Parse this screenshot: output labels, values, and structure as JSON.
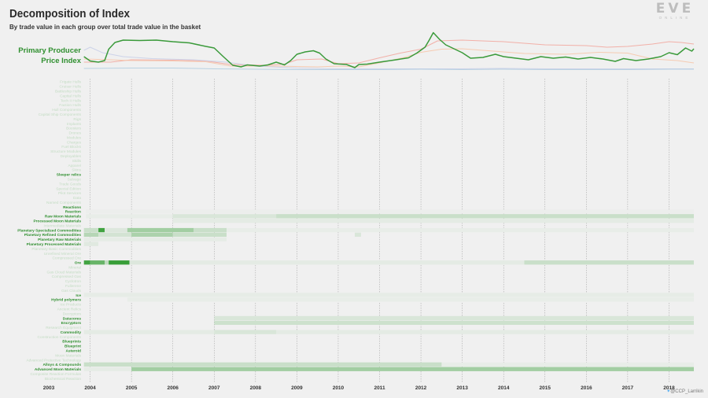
{
  "header": {
    "title": "Decomposition of Index",
    "subtitle": "By trade value in each group over total trade value in the basket"
  },
  "logo": {
    "text": "EVE",
    "tagline": "ONLINE"
  },
  "credit": {
    "handle": "@CCP_Larrikin"
  },
  "colors": {
    "background": "#f0f0f0",
    "index_line": "#3a9a3a",
    "label_highlight": "#2f8f2f",
    "label_faint": "#c3dcc3",
    "series_salmon": "#f2a9a0",
    "series_peach": "#f6c7ab",
    "series_lavender": "#c9cfe8",
    "series_blue": "#b3cde0",
    "heat_low": "#f0f0f0",
    "heat_high": "#2e9a2e"
  },
  "chart_data": {
    "type": "heatmap",
    "title": "Decomposition of Index",
    "subtitle": "By trade value in each group over total trade value in the basket",
    "index_label_lines": [
      "Primary Producer",
      "Price Index"
    ],
    "x_ticks": [
      "2003",
      "2004",
      "2005",
      "2006",
      "2007",
      "2008",
      "2009",
      "2010",
      "2011",
      "2012",
      "2013",
      "2014",
      "2015",
      "2016",
      "2017",
      "2018"
    ],
    "x_range": [
      2003.0,
      2018.6
    ],
    "line_series": [
      {
        "role": "index",
        "color": "#3a9a3a",
        "points": [
          [
            2003.85,
            0.36
          ],
          [
            2004.0,
            0.25
          ],
          [
            2004.2,
            0.22
          ],
          [
            2004.35,
            0.26
          ],
          [
            2004.45,
            0.55
          ],
          [
            2004.6,
            0.72
          ],
          [
            2004.8,
            0.78
          ],
          [
            2005.2,
            0.77
          ],
          [
            2005.6,
            0.78
          ],
          [
            2006.0,
            0.74
          ],
          [
            2006.4,
            0.71
          ],
          [
            2006.8,
            0.62
          ],
          [
            2007.0,
            0.58
          ],
          [
            2007.2,
            0.38
          ],
          [
            2007.45,
            0.14
          ],
          [
            2007.65,
            0.1
          ],
          [
            2007.8,
            0.15
          ],
          [
            2008.1,
            0.12
          ],
          [
            2008.3,
            0.15
          ],
          [
            2008.5,
            0.22
          ],
          [
            2008.7,
            0.15
          ],
          [
            2008.85,
            0.26
          ],
          [
            2009.0,
            0.42
          ],
          [
            2009.2,
            0.48
          ],
          [
            2009.4,
            0.51
          ],
          [
            2009.55,
            0.45
          ],
          [
            2009.7,
            0.3
          ],
          [
            2009.9,
            0.18
          ],
          [
            2010.2,
            0.16
          ],
          [
            2010.4,
            0.08
          ],
          [
            2010.5,
            0.16
          ],
          [
            2010.7,
            0.17
          ],
          [
            2011.0,
            0.22
          ],
          [
            2011.4,
            0.28
          ],
          [
            2011.7,
            0.33
          ],
          [
            2011.9,
            0.45
          ],
          [
            2012.1,
            0.6
          ],
          [
            2012.2,
            0.78
          ],
          [
            2012.3,
            0.97
          ],
          [
            2012.45,
            0.8
          ],
          [
            2012.6,
            0.66
          ],
          [
            2012.8,
            0.56
          ],
          [
            2013.0,
            0.46
          ],
          [
            2013.2,
            0.32
          ],
          [
            2013.5,
            0.34
          ],
          [
            2013.8,
            0.42
          ],
          [
            2014.0,
            0.36
          ],
          [
            2014.3,
            0.32
          ],
          [
            2014.6,
            0.28
          ],
          [
            2014.9,
            0.36
          ],
          [
            2015.2,
            0.32
          ],
          [
            2015.5,
            0.35
          ],
          [
            2015.8,
            0.3
          ],
          [
            2016.1,
            0.34
          ],
          [
            2016.4,
            0.3
          ],
          [
            2016.7,
            0.24
          ],
          [
            2016.9,
            0.31
          ],
          [
            2017.2,
            0.26
          ],
          [
            2017.5,
            0.3
          ],
          [
            2017.8,
            0.36
          ],
          [
            2018.0,
            0.46
          ],
          [
            2018.2,
            0.41
          ],
          [
            2018.4,
            0.58
          ],
          [
            2018.55,
            0.5
          ],
          [
            2018.6,
            0.56
          ]
        ]
      },
      {
        "role": "component",
        "color": "#f2a9a0",
        "points": [
          [
            2003.85,
            0.22
          ],
          [
            2004.5,
            0.22
          ],
          [
            2005.0,
            0.28
          ],
          [
            2006.0,
            0.27
          ],
          [
            2006.8,
            0.25
          ],
          [
            2007.4,
            0.16
          ],
          [
            2008.2,
            0.14
          ],
          [
            2008.7,
            0.17
          ],
          [
            2009.0,
            0.28
          ],
          [
            2009.6,
            0.3
          ],
          [
            2010.0,
            0.18
          ],
          [
            2010.5,
            0.2
          ],
          [
            2011.0,
            0.33
          ],
          [
            2011.5,
            0.45
          ],
          [
            2012.0,
            0.55
          ],
          [
            2012.4,
            0.76
          ],
          [
            2013.0,
            0.78
          ],
          [
            2014.0,
            0.74
          ],
          [
            2015.0,
            0.66
          ],
          [
            2016.0,
            0.64
          ],
          [
            2016.5,
            0.6
          ],
          [
            2017.0,
            0.62
          ],
          [
            2017.6,
            0.68
          ],
          [
            2018.0,
            0.74
          ],
          [
            2018.3,
            0.72
          ],
          [
            2018.6,
            0.68
          ]
        ]
      },
      {
        "role": "component",
        "color": "#f6c7ab",
        "points": [
          [
            2003.85,
            0.3
          ],
          [
            2004.5,
            0.28
          ],
          [
            2005.0,
            0.26
          ],
          [
            2006.0,
            0.25
          ],
          [
            2006.8,
            0.23
          ],
          [
            2007.4,
            0.12
          ],
          [
            2008.5,
            0.12
          ],
          [
            2009.5,
            0.1
          ],
          [
            2010.0,
            0.12
          ],
          [
            2010.5,
            0.1
          ],
          [
            2011.0,
            0.2
          ],
          [
            2011.6,
            0.34
          ],
          [
            2012.0,
            0.47
          ],
          [
            2012.5,
            0.55
          ],
          [
            2013.0,
            0.56
          ],
          [
            2013.5,
            0.52
          ],
          [
            2014.5,
            0.44
          ],
          [
            2015.5,
            0.42
          ],
          [
            2016.3,
            0.47
          ],
          [
            2017.0,
            0.45
          ],
          [
            2017.6,
            0.3
          ],
          [
            2018.2,
            0.26
          ],
          [
            2018.6,
            0.2
          ]
        ]
      },
      {
        "role": "component",
        "color": "#c9cfe8",
        "points": [
          [
            2003.85,
            0.52
          ],
          [
            2004.0,
            0.6
          ],
          [
            2004.3,
            0.46
          ],
          [
            2004.8,
            0.36
          ],
          [
            2005.5,
            0.31
          ],
          [
            2006.5,
            0.28
          ],
          [
            2007.3,
            0.22
          ],
          [
            2008.0,
            0.12
          ],
          [
            2009.0,
            0.07
          ],
          [
            2010.0,
            0.05
          ],
          [
            2011.0,
            0.05
          ],
          [
            2012.0,
            0.05
          ],
          [
            2013.0,
            0.05
          ],
          [
            2014.0,
            0.06
          ],
          [
            2015.0,
            0.05
          ],
          [
            2016.0,
            0.05
          ],
          [
            2017.0,
            0.05
          ],
          [
            2018.0,
            0.05
          ],
          [
            2018.6,
            0.05
          ]
        ]
      },
      {
        "role": "component",
        "color": "#b3cde0",
        "points": [
          [
            2003.85,
            0.06
          ],
          [
            2005.0,
            0.07
          ],
          [
            2006.0,
            0.07
          ],
          [
            2007.0,
            0.05
          ],
          [
            2008.0,
            0.04
          ],
          [
            2009.0,
            0.03
          ],
          [
            2010.0,
            0.03
          ],
          [
            2011.0,
            0.03
          ],
          [
            2012.0,
            0.04
          ],
          [
            2013.0,
            0.03
          ],
          [
            2014.0,
            0.04
          ],
          [
            2015.0,
            0.03
          ],
          [
            2016.0,
            0.03
          ],
          [
            2017.0,
            0.03
          ],
          [
            2018.0,
            0.04
          ],
          [
            2018.6,
            0.04
          ]
        ]
      }
    ],
    "rows": [
      {
        "label": "Frigate Hulls",
        "weight": 0,
        "bands": []
      },
      {
        "label": "Cruiser Hulls",
        "weight": 0,
        "bands": []
      },
      {
        "label": "Battleship Hulls",
        "weight": 0,
        "bands": []
      },
      {
        "label": "Capital Hulls",
        "weight": 0,
        "bands": []
      },
      {
        "label": "Tech II Hulls",
        "weight": 0,
        "bands": []
      },
      {
        "label": "Faction Hulls",
        "weight": 0,
        "bands": []
      },
      {
        "label": "Hull Components",
        "weight": 0,
        "bands": []
      },
      {
        "label": "Capital Ship Components",
        "weight": 0,
        "bands": []
      },
      {
        "label": "Rigs",
        "weight": 0,
        "bands": []
      },
      {
        "label": "Implants",
        "weight": 0,
        "bands": []
      },
      {
        "label": "Boosters",
        "weight": 0,
        "bands": []
      },
      {
        "label": "Drones",
        "weight": 0,
        "bands": []
      },
      {
        "label": "Modules",
        "weight": 0,
        "bands": []
      },
      {
        "label": "Charges",
        "weight": 0,
        "bands": []
      },
      {
        "label": "Fuel Blocks",
        "weight": 0,
        "bands": []
      },
      {
        "label": "Structure Modules",
        "weight": 0,
        "bands": []
      },
      {
        "label": "Deployables",
        "weight": 0,
        "bands": []
      },
      {
        "label": "Skills",
        "weight": 0,
        "bands": []
      },
      {
        "label": "Apparel",
        "weight": 0,
        "bands": []
      },
      {
        "label": "Skins",
        "weight": 0,
        "bands": []
      },
      {
        "label": "Sleeper relics",
        "weight": 1,
        "bands": []
      },
      {
        "label": "Salvage",
        "weight": 0,
        "bands": []
      },
      {
        "label": "Trade Goods",
        "weight": 0,
        "bands": []
      },
      {
        "label": "Special Edition",
        "weight": 0,
        "bands": []
      },
      {
        "label": "Pilot Services",
        "weight": 0,
        "bands": []
      },
      {
        "label": "Data",
        "weight": 0,
        "bands": []
      },
      {
        "label": "Named Components",
        "weight": 0,
        "bands": []
      },
      {
        "label": "Reactions",
        "weight": 1,
        "bands": []
      },
      {
        "label": "Reaction",
        "weight": 1,
        "bands": [
          [
            2003.9,
            2018.6,
            0.02
          ]
        ]
      },
      {
        "label": "Raw Moon Materials",
        "weight": 1,
        "bands": [
          [
            2003.9,
            2006.0,
            0.04
          ],
          [
            2006.0,
            2008.5,
            0.12
          ],
          [
            2008.5,
            2018.6,
            0.2
          ]
        ]
      },
      {
        "label": "Processed Moon Materials",
        "weight": 1,
        "bands": [
          [
            2006.0,
            2018.6,
            0.06
          ]
        ]
      },
      {
        "label": "Intermediate Materials",
        "weight": 0,
        "bands": []
      },
      {
        "label": "Planetary Specialized Commodities",
        "weight": 1,
        "bands": [
          [
            2003.85,
            2004.2,
            0.2
          ],
          [
            2004.2,
            2004.35,
            0.9
          ],
          [
            2004.35,
            2004.9,
            0.1
          ],
          [
            2004.9,
            2006.5,
            0.4
          ],
          [
            2006.5,
            2007.3,
            0.2
          ],
          [
            2007.3,
            2018.6,
            0.04
          ]
        ]
      },
      {
        "label": "Planetary Refined Commodities",
        "weight": 1,
        "bands": [
          [
            2003.85,
            2004.2,
            0.3
          ],
          [
            2004.2,
            2005.0,
            0.15
          ],
          [
            2005.0,
            2006.0,
            0.35
          ],
          [
            2006.0,
            2007.3,
            0.2
          ],
          [
            2010.4,
            2010.55,
            0.12
          ]
        ]
      },
      {
        "label": "Planetary Raw Materials",
        "weight": 1,
        "bands": [
          [
            2003.85,
            2007.3,
            0.05
          ]
        ]
      },
      {
        "label": "Planetary Processed Materials",
        "weight": 1,
        "bands": [
          [
            2003.85,
            2004.2,
            0.08
          ]
        ]
      },
      {
        "label": "Planetary Basic Commodities",
        "weight": 0,
        "bands": []
      },
      {
        "label": "Unrefined Mineral Ore",
        "weight": 0,
        "bands": []
      },
      {
        "label": "Compressed Ore",
        "weight": 0,
        "bands": []
      },
      {
        "label": "Ore",
        "weight": 1,
        "bands": [
          [
            2003.85,
            2004.0,
            0.9
          ],
          [
            2004.0,
            2004.35,
            0.7
          ],
          [
            2004.35,
            2004.45,
            0.25
          ],
          [
            2004.45,
            2004.95,
            0.95
          ],
          [
            2004.95,
            2006.0,
            0.1
          ],
          [
            2006.0,
            2014.5,
            0.06
          ],
          [
            2014.5,
            2018.6,
            0.2
          ]
        ]
      },
      {
        "label": "Mineral",
        "weight": 0,
        "bands": []
      },
      {
        "label": "Gas Cloud Materials",
        "weight": 0,
        "bands": []
      },
      {
        "label": "Compressed Gas",
        "weight": 0,
        "bands": []
      },
      {
        "label": "Cyclotron",
        "weight": 0,
        "bands": []
      },
      {
        "label": "Fullerene",
        "weight": 0,
        "bands": []
      },
      {
        "label": "Gas Clouds",
        "weight": 0,
        "bands": []
      },
      {
        "label": "Ice",
        "weight": 1,
        "bands": [
          [
            2003.85,
            2018.6,
            0.05
          ]
        ]
      },
      {
        "label": "Hybrid polymers",
        "weight": 1,
        "bands": [
          [
            2004.9,
            2018.6,
            0.04
          ]
        ]
      },
      {
        "label": "Ice Products",
        "weight": 0,
        "bands": []
      },
      {
        "label": "Ancient Relics",
        "weight": 0,
        "bands": []
      },
      {
        "label": "Decryptors",
        "weight": 0,
        "bands": []
      },
      {
        "label": "Datacores",
        "weight": 1,
        "bands": [
          [
            2007.0,
            2018.6,
            0.12
          ]
        ]
      },
      {
        "label": "Encryptors",
        "weight": 1,
        "bands": [
          [
            2007.0,
            2018.6,
            0.18
          ]
        ]
      },
      {
        "label": "Research Equipment",
        "weight": 0,
        "bands": []
      },
      {
        "label": "Commodity",
        "weight": 1,
        "bands": [
          [
            2003.85,
            2018.6,
            0.06
          ],
          [
            2007.0,
            2008.5,
            0.12
          ]
        ]
      },
      {
        "label": "Construction Components",
        "weight": 0,
        "bands": []
      },
      {
        "label": "Blueprints",
        "weight": 1,
        "bands": []
      },
      {
        "label": "Blueprint",
        "weight": 1,
        "bands": []
      },
      {
        "label": "Asteroid",
        "weight": 1,
        "bands": []
      },
      {
        "label": "Moon Materials",
        "weight": 0,
        "bands": []
      },
      {
        "label": "Advanced Protective Technology",
        "weight": 0,
        "bands": []
      },
      {
        "label": "Alloys & Compounds",
        "weight": 1,
        "bands": [
          [
            2003.85,
            2012.5,
            0.2
          ],
          [
            2012.5,
            2018.6,
            0.04
          ]
        ]
      },
      {
        "label": "Advanced Moon Materials",
        "weight": 1,
        "bands": [
          [
            2003.85,
            2005.0,
            0.05
          ],
          [
            2005.0,
            2018.6,
            0.4
          ]
        ]
      },
      {
        "label": "Composite Reaction Formulas",
        "weight": 0,
        "bands": []
      },
      {
        "label": "Biochemical Reaction",
        "weight": 0,
        "bands": []
      }
    ]
  }
}
